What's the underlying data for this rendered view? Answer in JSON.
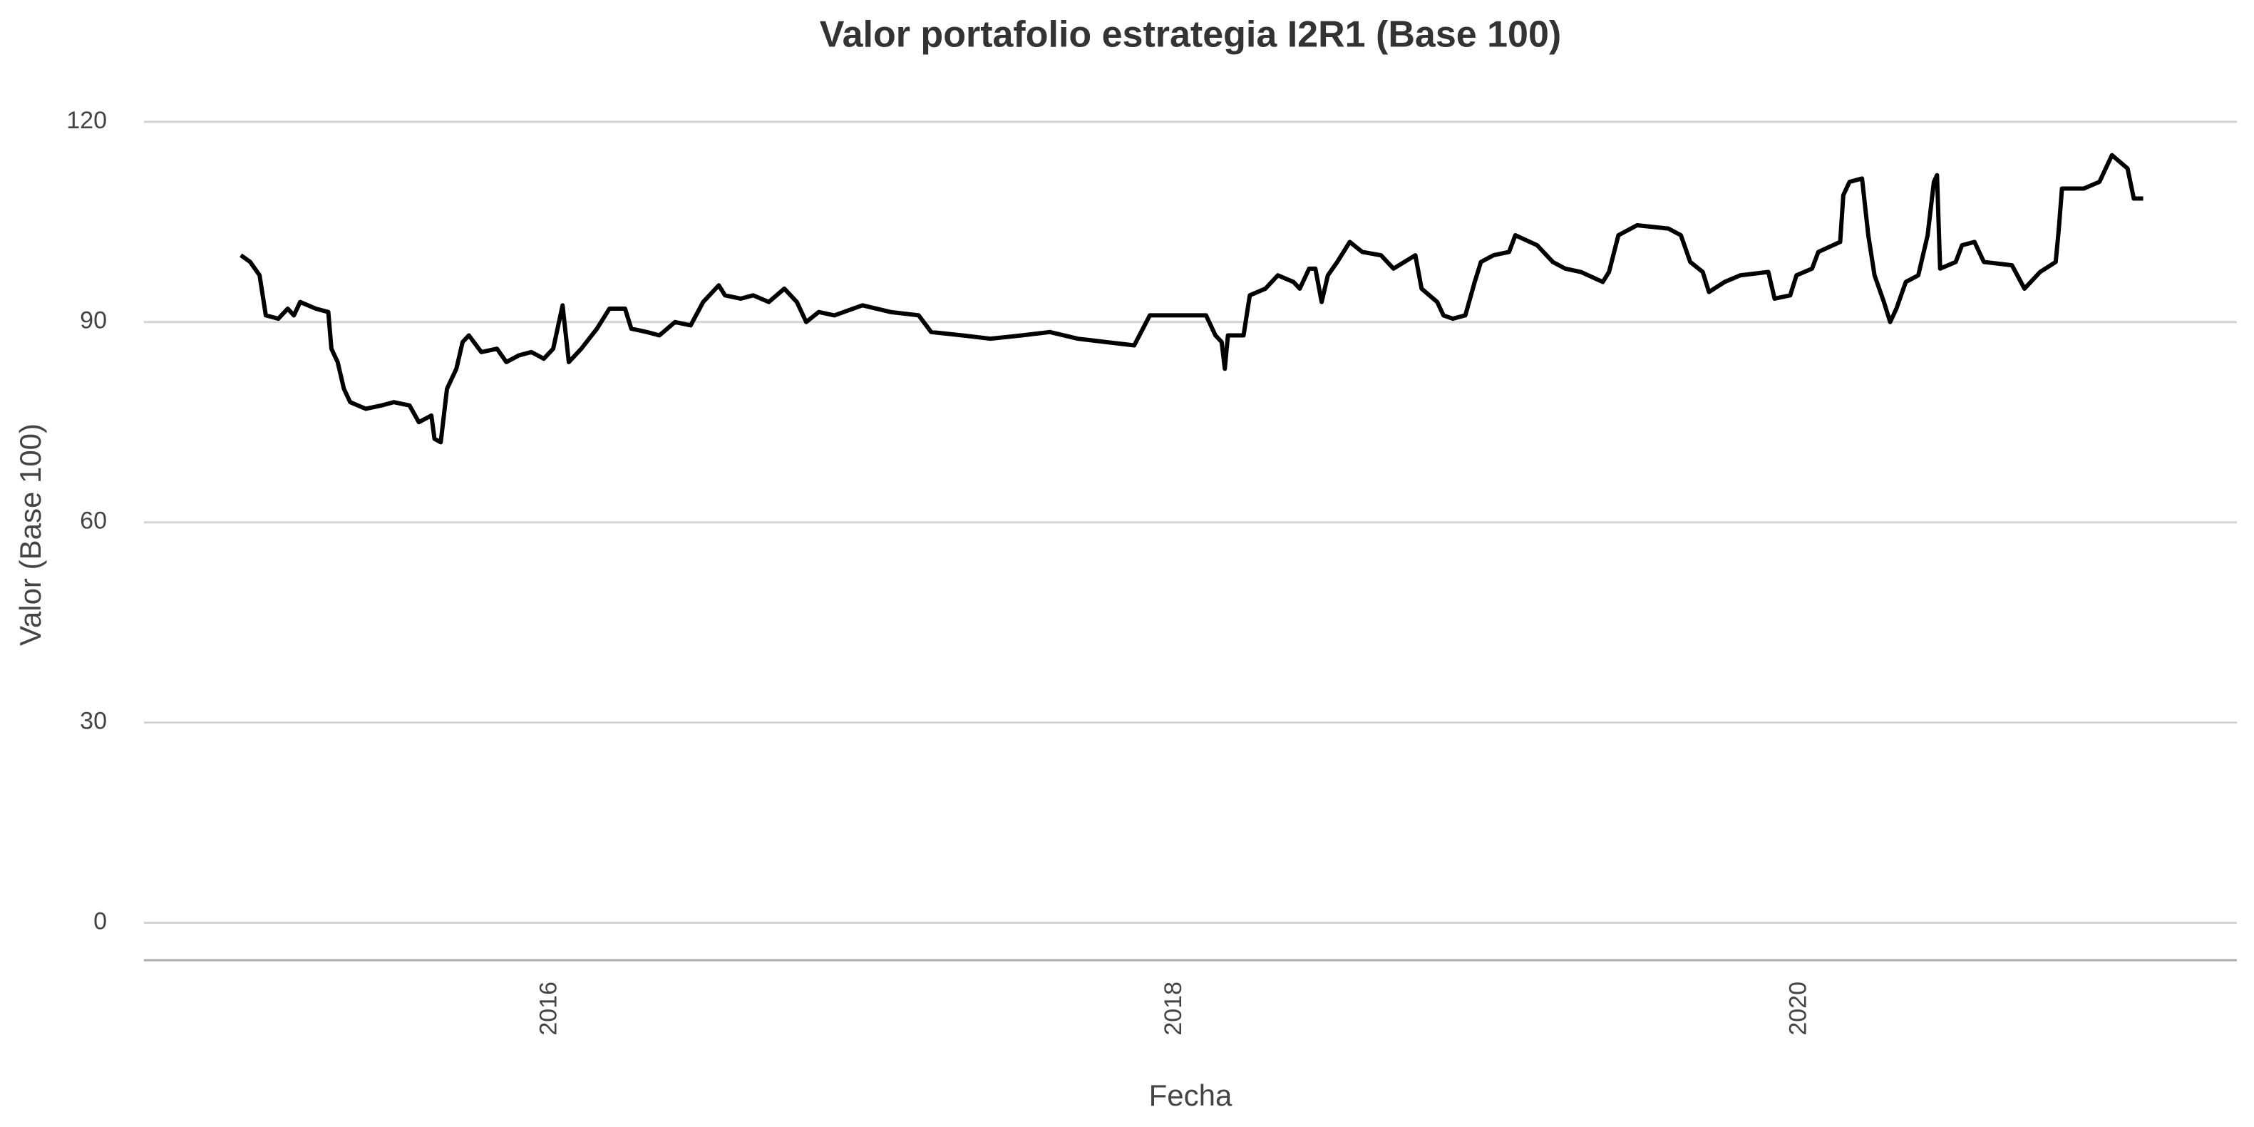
{
  "chart_data": {
    "type": "line",
    "title": "Valor portafolio estrategia I2R1 (Base 100)",
    "x_label": "Fecha",
    "y_label": "Valor (Base 100)",
    "x": [
      2015.01,
      2015.04,
      2015.07,
      2015.09,
      2015.13,
      2015.16,
      2015.18,
      2015.2,
      2015.25,
      2015.29,
      2015.3,
      2015.32,
      2015.34,
      2015.36,
      2015.41,
      2015.46,
      2015.5,
      2015.55,
      2015.58,
      2015.62,
      2015.63,
      2015.65,
      2015.67,
      2015.7,
      2015.72,
      2015.74,
      2015.78,
      2015.83,
      2015.86,
      2015.9,
      2015.94,
      2015.98,
      2016.01,
      2016.04,
      2016.06,
      2016.1,
      2016.15,
      2016.19,
      2016.24,
      2016.26,
      2016.31,
      2016.35,
      2016.4,
      2016.45,
      2016.49,
      2016.54,
      2016.56,
      2016.61,
      2016.65,
      2016.7,
      2016.75,
      2016.79,
      2016.82,
      2016.86,
      2016.91,
      2017.0,
      2017.09,
      2017.18,
      2017.22,
      2017.32,
      2017.41,
      2017.51,
      2017.6,
      2017.69,
      2017.78,
      2017.87,
      2017.92,
      2018.01,
      2018.1,
      2018.13,
      2018.15,
      2018.16,
      2018.17,
      2018.22,
      2018.24,
      2018.29,
      2018.33,
      2018.38,
      2018.4,
      2018.43,
      2018.45,
      2018.47,
      2018.49,
      2018.52,
      2018.56,
      2018.6,
      2018.66,
      2018.7,
      2018.77,
      2018.79,
      2018.84,
      2018.86,
      2018.89,
      2018.93,
      2018.96,
      2018.98,
      2019.02,
      2019.07,
      2019.09,
      2019.16,
      2019.21,
      2019.25,
      2019.3,
      2019.37,
      2019.39,
      2019.42,
      2019.48,
      2019.58,
      2019.62,
      2019.65,
      2019.69,
      2019.71,
      2019.76,
      2019.81,
      2019.9,
      2019.92,
      2019.97,
      2019.99,
      2020.04,
      2020.06,
      2020.13,
      2020.14,
      2020.16,
      2020.2,
      2020.22,
      2020.24,
      2020.27,
      2020.29,
      2020.31,
      2020.34,
      2020.38,
      2020.41,
      2020.43,
      2020.44,
      2020.45,
      2020.5,
      2020.52,
      2020.56,
      2020.59,
      2020.68,
      2020.72,
      2020.77,
      2020.82,
      2020.83,
      2020.84,
      2020.91,
      2020.96,
      2021.0,
      2021.05,
      2021.07,
      2021.1
    ],
    "series": [
      {
        "name": "Valor",
        "color": "#000000",
        "values": [
          100,
          99,
          97,
          91,
          90.5,
          92,
          91,
          93,
          92,
          91.5,
          86,
          84,
          80,
          78,
          77,
          77.5,
          78,
          77.5,
          75,
          76,
          72.5,
          72,
          80,
          83,
          87,
          88,
          85.5,
          86,
          84,
          85,
          85.5,
          84.5,
          86,
          92.5,
          84,
          86,
          89,
          92,
          92,
          89,
          88.5,
          88,
          90,
          89.5,
          93,
          95.5,
          94,
          93.5,
          94,
          93,
          95,
          93,
          90,
          91.5,
          91,
          92.5,
          91.5,
          91,
          88.5,
          88,
          87.5,
          88,
          88.5,
          87.5,
          87,
          86.5,
          91,
          91,
          91,
          88,
          87,
          83,
          88,
          88,
          94,
          95,
          97,
          96,
          95,
          98,
          98,
          93,
          97,
          99,
          102,
          100.5,
          100,
          98,
          100,
          95,
          93,
          91,
          90.5,
          91,
          96,
          99,
          100,
          100.5,
          103,
          101.5,
          99,
          98,
          97.5,
          96,
          97.5,
          103,
          104.5,
          104,
          103,
          99,
          97.5,
          94.5,
          96,
          97,
          97.5,
          93.5,
          94,
          97,
          98,
          100.5,
          102,
          109,
          111,
          111.5,
          103,
          97,
          93,
          90,
          92,
          96,
          97,
          103,
          111,
          112,
          98,
          99,
          101.5,
          102,
          99,
          98.5,
          95,
          97.5,
          99,
          104,
          110,
          110,
          111,
          115,
          113,
          108.5,
          108.5
        ]
      }
    ],
    "xlim": [
      2014.7,
      2021.4
    ],
    "xticks": [
      2016,
      2018,
      2020
    ],
    "ylim": [
      -5.6,
      125
    ],
    "yticks": [
      0,
      30,
      60,
      90,
      120
    ],
    "grid": true
  }
}
